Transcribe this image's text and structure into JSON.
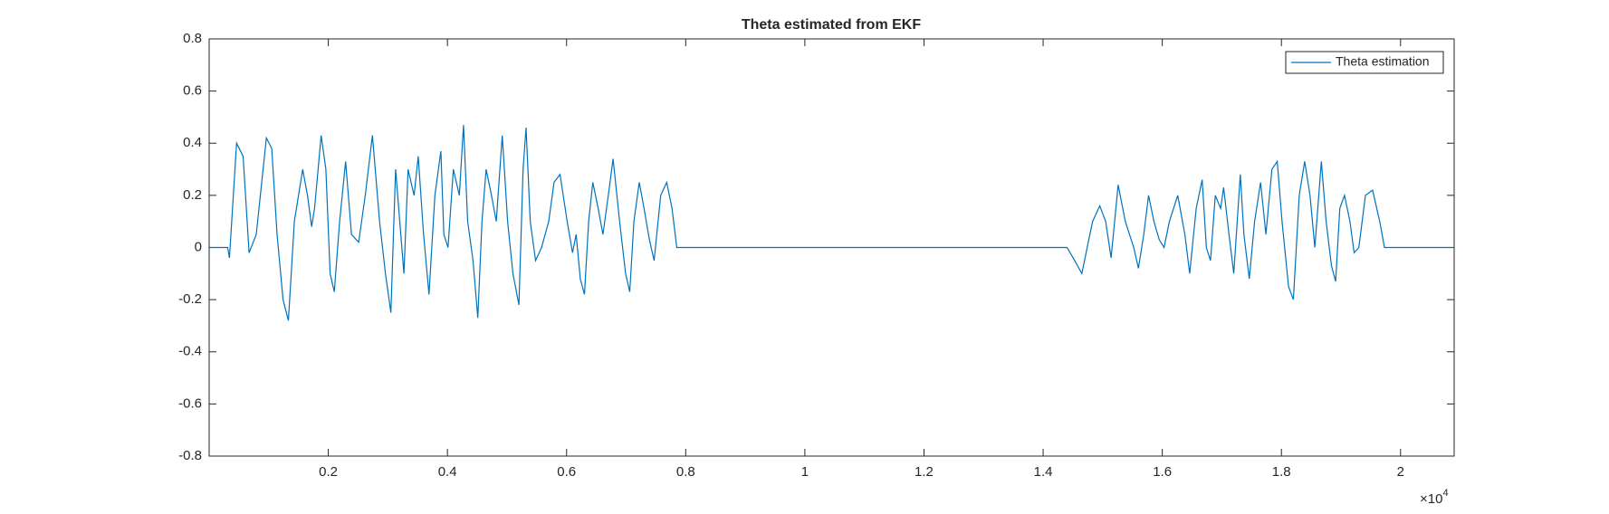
{
  "chart_data": {
    "type": "line",
    "title": "Theta estimated from EKF",
    "x_exponent_base": "×10",
    "x_exponent": "4",
    "xlim": [
      0,
      20900
    ],
    "ylim": [
      -0.8,
      0.8
    ],
    "xticks": [
      {
        "value": 2000,
        "label": "0.2"
      },
      {
        "value": 4000,
        "label": "0.4"
      },
      {
        "value": 6000,
        "label": "0.6"
      },
      {
        "value": 8000,
        "label": "0.8"
      },
      {
        "value": 10000,
        "label": "1"
      },
      {
        "value": 12000,
        "label": "1.2"
      },
      {
        "value": 14000,
        "label": "1.4"
      },
      {
        "value": 16000,
        "label": "1.6"
      },
      {
        "value": 18000,
        "label": "1.8"
      },
      {
        "value": 20000,
        "label": "2"
      }
    ],
    "yticks": [
      -0.8,
      -0.6,
      -0.4,
      -0.2,
      0,
      0.2,
      0.4,
      0.6,
      0.8
    ],
    "grid": false,
    "legend": "top-right",
    "series": [
      {
        "name": "Theta estimation",
        "color": "#0072BD",
        "x": [
          0,
          310,
          340,
          460,
          570,
          670,
          790,
          960,
          1050,
          1140,
          1240,
          1330,
          1430,
          1570,
          1650,
          1720,
          1770,
          1880,
          1960,
          2030,
          2100,
          2190,
          2290,
          2390,
          2510,
          2620,
          2740,
          2860,
          2960,
          3050,
          3130,
          3200,
          3270,
          3340,
          3440,
          3510,
          3600,
          3690,
          3790,
          3890,
          3940,
          4010,
          4100,
          4200,
          4270,
          4340,
          4430,
          4510,
          4580,
          4650,
          4740,
          4820,
          4920,
          5010,
          5100,
          5200,
          5270,
          5320,
          5390,
          5480,
          5580,
          5700,
          5790,
          5890,
          6010,
          6100,
          6160,
          6230,
          6300,
          6370,
          6440,
          6530,
          6610,
          6700,
          6780,
          6890,
          6990,
          7060,
          7130,
          7220,
          7300,
          7390,
          7470,
          7580,
          7680,
          7770,
          7850,
          7940,
          14400,
          14530,
          14650,
          14740,
          14830,
          14950,
          15050,
          15140,
          15260,
          15380,
          15520,
          15600,
          15690,
          15770,
          15860,
          15950,
          16030,
          16120,
          16260,
          16380,
          16460,
          16570,
          16670,
          16740,
          16810,
          16890,
          16980,
          17030,
          17120,
          17200,
          17310,
          17370,
          17460,
          17550,
          17650,
          17740,
          17840,
          17930,
          18010,
          18120,
          18200,
          18300,
          18390,
          18480,
          18560,
          18670,
          18750,
          18840,
          18910,
          18980,
          19060,
          19150,
          19220,
          19300,
          19410,
          19530,
          19650,
          19730,
          19820,
          20890
        ],
        "values": [
          0,
          0,
          -0.04,
          0.4,
          0.35,
          -0.02,
          0.05,
          0.42,
          0.38,
          0.05,
          -0.2,
          -0.28,
          0.1,
          0.3,
          0.2,
          0.08,
          0.15,
          0.43,
          0.3,
          -0.1,
          -0.17,
          0.1,
          0.33,
          0.05,
          0.02,
          0.2,
          0.43,
          0.1,
          -0.1,
          -0.25,
          0.3,
          0.1,
          -0.1,
          0.3,
          0.2,
          0.35,
          0.05,
          -0.18,
          0.2,
          0.37,
          0.05,
          0,
          0.3,
          0.2,
          0.47,
          0.1,
          -0.05,
          -0.27,
          0.1,
          0.3,
          0.2,
          0.1,
          0.43,
          0.1,
          -0.1,
          -0.22,
          0.3,
          0.46,
          0.1,
          -0.05,
          0,
          0.1,
          0.25,
          0.28,
          0.1,
          -0.02,
          0.05,
          -0.12,
          -0.18,
          0.1,
          0.25,
          0.15,
          0.05,
          0.2,
          0.34,
          0.1,
          -0.1,
          -0.17,
          0.1,
          0.25,
          0.15,
          0.03,
          -0.05,
          0.2,
          0.25,
          0.15,
          0,
          0,
          0,
          -0.05,
          -0.1,
          0,
          0.1,
          0.16,
          0.1,
          -0.04,
          0.24,
          0.1,
          0,
          -0.08,
          0.05,
          0.2,
          0.1,
          0.03,
          0,
          0.1,
          0.2,
          0.05,
          -0.1,
          0.15,
          0.26,
          0,
          -0.05,
          0.2,
          0.15,
          0.23,
          0.05,
          -0.1,
          0.28,
          0.05,
          -0.12,
          0.1,
          0.25,
          0.05,
          0.3,
          0.33,
          0.1,
          -0.15,
          -0.2,
          0.2,
          0.33,
          0.2,
          0,
          0.33,
          0.1,
          -0.07,
          -0.13,
          0.15,
          0.2,
          0.1,
          -0.02,
          0,
          0.2,
          0.22,
          0.1,
          0,
          0,
          0
        ]
      }
    ]
  }
}
